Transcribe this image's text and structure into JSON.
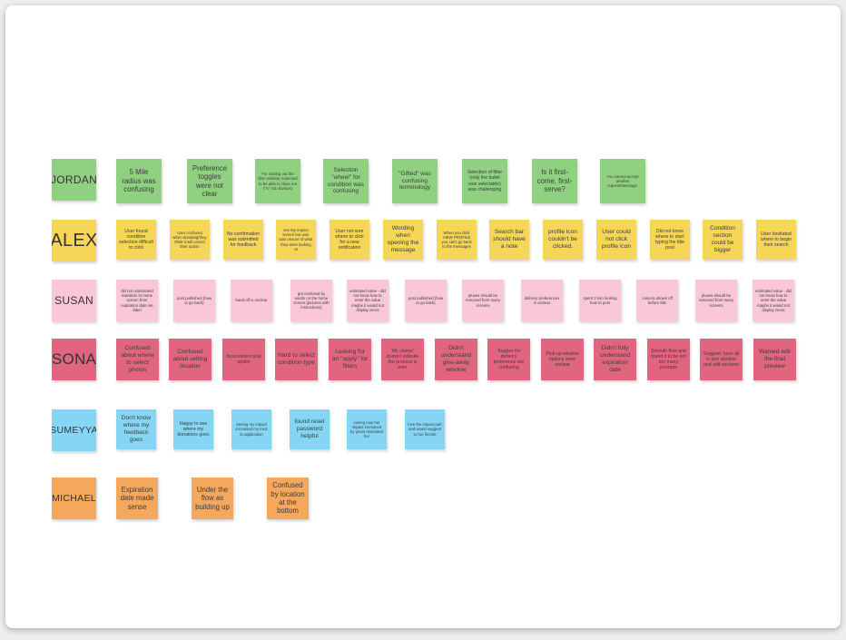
{
  "board": {
    "rows": [
      {
        "participant": "JORDAN",
        "color": "#8fd181",
        "notes": [
          "5 Mile radius was confusing",
          "Preference toggles were not clear",
          "For closing out the filter window, expected to be able to close out (\"X\" not obvious)",
          "Selection \"wheel\" for condition was confusing",
          "\"Gifted\" was confusing terminology",
          "Selection of filter (only the bullet was selectable) was challenging",
          "Is it first-come, first-serve?",
          "You cannot accept another request/message."
        ]
      },
      {
        "participant": "ALEX",
        "color": "#f5d656",
        "notes": [
          "User found condition selection difficult to click",
          "User confused when donating/they think it will cancel their option",
          "No confirmation was submitted for feedback",
          "see My impact screen but user was unsure of what they were looking at",
          "User not sure where to click for a new notification",
          "Wording when opening the message",
          "When you click VIEW PROFILE you can't go back to the messages",
          "Search bar should have a note",
          "profile icon couldn't be clicked.",
          "User could not click profile icon",
          "Did not know where to start typing the title post",
          "Condition section could be bigger",
          "User hesitated where to begin their search"
        ]
      },
      {
        "participant": "SUSAN",
        "color": "#f9c7d9",
        "notes": [
          "did not understand transition to home screen from expiration date set label",
          "post published (how to go back)",
          "hand-off is unclear",
          "got confused by words on the home screen (pictures with instructions)",
          "estimated value - did not know how to enter the value maybe it would not display zeros",
          "post published (how to go back)",
          "pluses should be removed from many screens",
          "delivery preferences is unclear",
          "spent 3 min looking how to post",
          "camera shows off before title",
          "pluses should be removed from many screens",
          "estimated value - did not know how to enter the value maybe it would not display zeros"
        ]
      },
      {
        "participant": "SONA",
        "color": "#e26580",
        "notes": [
          "Confused about where to select photos",
          "Confused about setting location",
          "Inconsistent skip option",
          "Hard to select condition type",
          "Looking for an \"apply\" for filters",
          "'My claims' doesn't indicate the process is over",
          "Didn't understand give-away window",
          "Toggles for delivery preference are confusing",
          "Pick-up window options were unclear",
          "Didn't fully understand expiration date",
          "Smooth flow and found it to be not too many prompts",
          "Suggest: have all in one window and edit sections",
          "Wanted edit the final preview"
        ]
      },
      {
        "participant": "SUMEYYA",
        "color": "#84d6f4",
        "notes": [
          "Don't know where my feedback goes",
          "Happy to see where my donations goes",
          "Seeing my impact increased my trust to application",
          "found reset password helpful",
          "seeing how her impact increased by years motivated her",
          "love the impact part and would suggest to her friends"
        ]
      },
      {
        "participant": "MICHAEL",
        "color": "#f5a75b",
        "notes": [
          "Expiration date made sense",
          "Under the flow as building up",
          "Confused by location at the bottom"
        ]
      }
    ]
  }
}
